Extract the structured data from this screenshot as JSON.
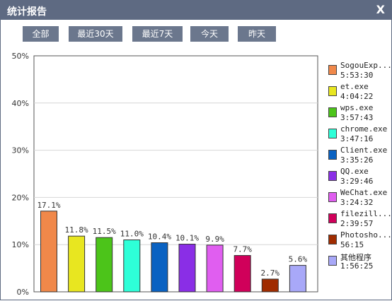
{
  "window": {
    "title": "统计报告",
    "close_label": "X"
  },
  "filters": [
    {
      "label": "全部"
    },
    {
      "label": "最近30天"
    },
    {
      "label": "最近7天"
    },
    {
      "label": "今天"
    },
    {
      "label": "昨天"
    }
  ],
  "colors": {
    "titlebar": "#5e6a82",
    "button": "#6b778d"
  },
  "chart_data": {
    "type": "bar",
    "title": "",
    "xlabel": "",
    "ylabel": "",
    "ylim": [
      0,
      50
    ],
    "yticks": [
      "0%",
      "10%",
      "20%",
      "30%",
      "40%",
      "50%"
    ],
    "grid": true,
    "legend": "right",
    "categories": [
      "SogouExp...",
      "et.exe",
      "wps.exe",
      "chrome.exe",
      "Client.exe",
      "QQ.exe",
      "WeChat.exe",
      "filezill...",
      "Photosho...",
      "其他程序"
    ],
    "times": [
      "5:53:30",
      "4:04:22",
      "3:57:43",
      "3:47:16",
      "3:35:26",
      "3:29:46",
      "3:24:32",
      "2:39:57",
      "56:15",
      "1:56:25"
    ],
    "values": [
      17.1,
      11.8,
      11.5,
      11.0,
      10.4,
      10.1,
      9.9,
      7.7,
      2.7,
      5.6
    ],
    "value_labels": [
      "17.1%",
      "11.8%",
      "11.5%",
      "11.0%",
      "10.4%",
      "10.1%",
      "9.9%",
      "7.7%",
      "2.7%",
      "5.6%"
    ],
    "colors": [
      "#f0884a",
      "#e8e620",
      "#4cc41a",
      "#2effd8",
      "#0a62c2",
      "#8a2ee6",
      "#e05ef0",
      "#d0005a",
      "#a02c00",
      "#a8a8f8"
    ]
  }
}
